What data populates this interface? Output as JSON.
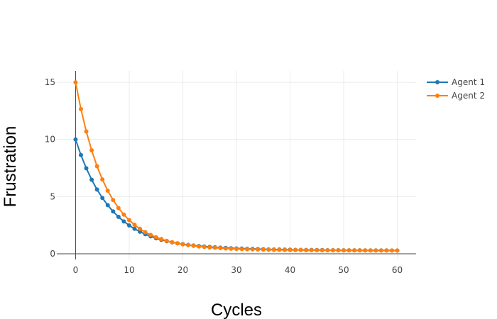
{
  "chart_data": {
    "type": "line",
    "xlabel": "Cycles",
    "ylabel": "Frustration",
    "xlim": [
      -3.5,
      63.5
    ],
    "ylim": [
      -0.5,
      16
    ],
    "x_ticks": [
      0,
      10,
      20,
      30,
      40,
      50,
      60
    ],
    "y_ticks": [
      0,
      5,
      10,
      15
    ],
    "grid": true,
    "legend_position": "top-right",
    "series": [
      {
        "name": "Agent 1",
        "color": "#1f77b4",
        "x": [
          0,
          1,
          2,
          3,
          4,
          5,
          6,
          7,
          8,
          9,
          10,
          11,
          12,
          13,
          14,
          15,
          16,
          17,
          18,
          19,
          20,
          21,
          22,
          23,
          24,
          25,
          26,
          27,
          28,
          29,
          30,
          31,
          32,
          33,
          34,
          35,
          36,
          37,
          38,
          39,
          40,
          41,
          42,
          43,
          44,
          45,
          46,
          47,
          48,
          49,
          50,
          51,
          52,
          53,
          54,
          55,
          56,
          57,
          58,
          59,
          60
        ],
        "values": [
          10.0,
          8.64,
          7.48,
          6.48,
          5.62,
          4.88,
          4.25,
          3.7,
          3.23,
          2.83,
          2.48,
          2.18,
          1.93,
          1.71,
          1.52,
          1.36,
          1.22,
          1.1,
          1.0,
          0.91,
          0.84,
          0.77,
          0.72,
          0.67,
          0.63,
          0.59,
          0.56,
          0.53,
          0.51,
          0.48,
          0.46,
          0.45,
          0.43,
          0.42,
          0.41,
          0.39,
          0.38,
          0.37,
          0.37,
          0.36,
          0.35,
          0.34,
          0.34,
          0.33,
          0.33,
          0.32,
          0.32,
          0.31,
          0.31,
          0.31,
          0.3,
          0.3,
          0.3,
          0.3,
          0.29,
          0.29,
          0.29,
          0.29,
          0.29,
          0.28,
          0.28
        ]
      },
      {
        "name": "Agent 2",
        "color": "#ff7f0e",
        "x": [
          0,
          1,
          2,
          3,
          4,
          5,
          6,
          7,
          8,
          9,
          10,
          11,
          12,
          13,
          14,
          15,
          16,
          17,
          18,
          19,
          20,
          21,
          22,
          23,
          24,
          25,
          26,
          27,
          28,
          29,
          30,
          31,
          32,
          33,
          34,
          35,
          36,
          37,
          38,
          39,
          40,
          41,
          42,
          43,
          44,
          45,
          46,
          47,
          48,
          49,
          50,
          51,
          52,
          53,
          54,
          55,
          56,
          57,
          58,
          59,
          60
        ],
        "values": [
          15.0,
          12.66,
          10.7,
          9.05,
          7.66,
          6.5,
          5.52,
          4.7,
          4.0,
          3.42,
          2.94,
          2.53,
          2.18,
          1.89,
          1.65,
          1.45,
          1.28,
          1.13,
          1.01,
          0.91,
          0.82,
          0.75,
          0.69,
          0.63,
          0.59,
          0.55,
          0.52,
          0.49,
          0.46,
          0.44,
          0.42,
          0.41,
          0.39,
          0.38,
          0.37,
          0.36,
          0.35,
          0.34,
          0.34,
          0.33,
          0.33,
          0.32,
          0.32,
          0.31,
          0.31,
          0.31,
          0.3,
          0.3,
          0.3,
          0.3,
          0.29,
          0.29,
          0.29,
          0.29,
          0.29,
          0.29,
          0.28,
          0.28,
          0.28,
          0.28,
          0.28
        ]
      }
    ]
  }
}
